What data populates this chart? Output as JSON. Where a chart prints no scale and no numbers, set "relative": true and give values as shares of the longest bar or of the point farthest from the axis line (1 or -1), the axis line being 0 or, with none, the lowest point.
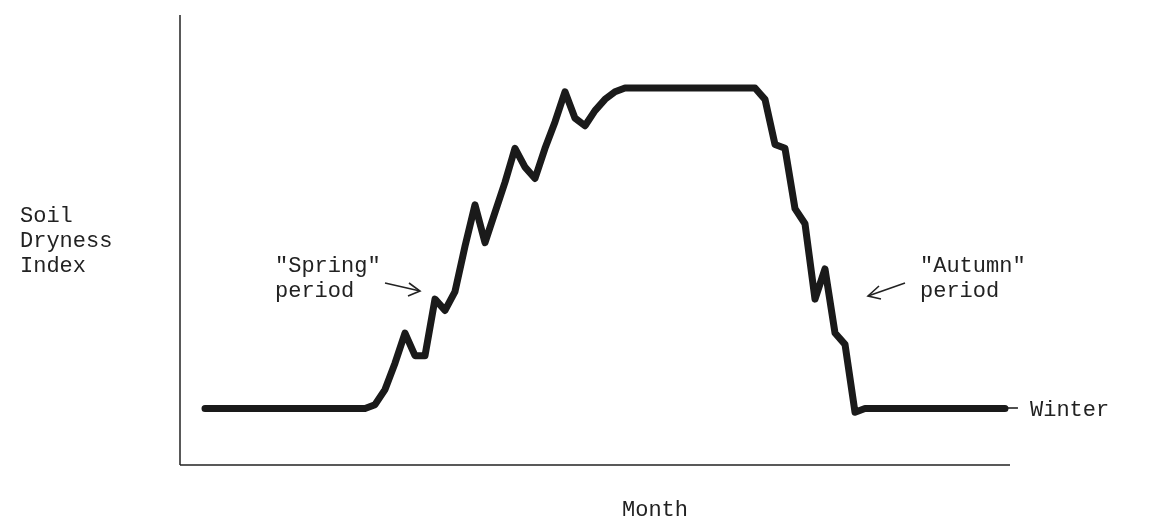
{
  "chart_data": {
    "type": "line",
    "relative": true,
    "xlabel": "Month",
    "ylabel": "Soil\nDryness\nIndex",
    "marker": "none",
    "line_style": "solid",
    "categories": [
      null,
      null,
      null,
      null,
      null,
      null,
      null,
      null,
      null,
      null,
      null,
      null,
      null,
      null,
      null,
      null,
      null,
      null,
      null,
      null,
      null,
      null,
      null,
      null,
      null,
      null,
      null,
      null,
      null,
      null,
      null,
      null,
      null,
      null,
      null,
      null,
      null,
      null,
      null,
      null,
      null,
      null,
      null,
      null,
      null,
      null,
      null,
      null,
      null,
      null,
      null,
      null,
      null,
      null,
      null,
      null,
      null,
      null,
      null,
      null,
      null,
      null,
      null,
      null,
      null,
      null,
      null,
      null,
      null,
      null,
      null,
      null,
      null,
      null,
      null,
      null,
      null,
      null,
      null,
      null,
      null
    ],
    "series": [
      {
        "color": "#1a1a1a",
        "values": [
          0.15,
          0.15,
          0.15,
          0.15,
          0.15,
          0.15,
          0.15,
          0.15,
          0.15,
          0.15,
          0.15,
          0.15,
          0.15,
          0.15,
          0.15,
          0.15,
          0.15,
          0.16,
          0.2,
          0.27,
          0.35,
          0.29,
          0.29,
          0.44,
          0.41,
          0.46,
          0.58,
          0.69,
          0.59,
          0.67,
          0.75,
          0.84,
          0.79,
          0.76,
          0.84,
          0.91,
          0.99,
          0.92,
          0.9,
          0.94,
          0.97,
          0.99,
          1,
          1,
          1,
          1,
          1,
          1,
          1,
          1,
          1,
          1,
          1,
          1,
          1,
          1,
          0.97,
          0.85,
          0.84,
          0.68,
          0.64,
          0.44,
          0.52,
          0.35,
          0.32,
          0.14,
          0.15,
          0.15,
          0.15,
          0.15,
          0.15,
          0.15,
          0.15,
          0.15,
          0.15,
          0.15,
          0.15,
          0.15,
          0.15,
          0.15,
          0.15
        ]
      }
    ],
    "annotations": [
      "\"Spring\"\nperiod",
      "\"Autumn\"\nperiod",
      "Winter"
    ]
  }
}
